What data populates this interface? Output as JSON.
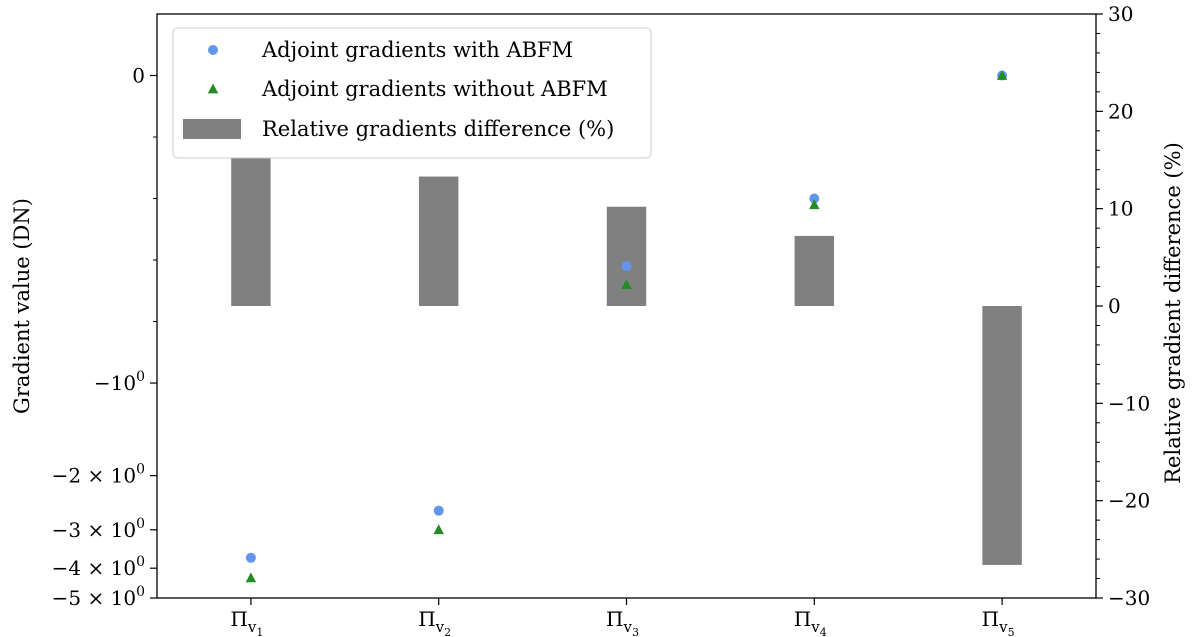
{
  "chart_data": {
    "type": "bar",
    "categories": [
      "Π",
      "Π",
      "Π",
      "Π",
      "Π"
    ],
    "category_subscripts": [
      "v",
      "v",
      "v",
      "v",
      "v"
    ],
    "category_subsub": [
      "1",
      "2",
      "3",
      "4",
      "5"
    ],
    "series": [
      {
        "name": "Adjoint gradients with ABFM",
        "kind": "scatter",
        "marker": "circle",
        "axis": "left",
        "color": "#6495ED",
        "values": [
          -3.7,
          -2.6,
          -0.62,
          -0.4,
          0.0
        ]
      },
      {
        "name": "Adjoint gradients without ABFM",
        "kind": "scatter",
        "marker": "triangle",
        "axis": "left",
        "color": "#228B22",
        "values": [
          -4.3,
          -3.0,
          -0.68,
          -0.42,
          0.0
        ]
      },
      {
        "name": "Relative gradients difference (%)",
        "kind": "bar",
        "axis": "right",
        "color": "#808080",
        "values": [
          15.3,
          13.3,
          10.2,
          7.2,
          -26.6
        ]
      }
    ],
    "y_left": {
      "label": "Gradient value (DN)",
      "scale": "symlog",
      "linthresh": 1,
      "ylim": [
        -5.0,
        0.2
      ],
      "ticks": [
        {
          "value": 0,
          "label": "0"
        },
        {
          "value": -1,
          "label": "−10",
          "sup": "0"
        },
        {
          "value": -2,
          "label": "−2 × 10",
          "sup": "0"
        },
        {
          "value": -3,
          "label": "−3 × 10",
          "sup": "0"
        },
        {
          "value": -4,
          "label": "−4 × 10",
          "sup": "0"
        },
        {
          "value": -5,
          "label": "−5 × 10",
          "sup": "0"
        }
      ]
    },
    "y_right": {
      "label": "Relative gradient difference (%)",
      "scale": "linear",
      "ylim": [
        -30,
        30
      ],
      "ticks": [
        30,
        20,
        10,
        0,
        -10,
        -20,
        -30
      ],
      "tick_labels": [
        "30",
        "20",
        "10",
        "0",
        "−10",
        "−20",
        "−30"
      ]
    },
    "grid": false,
    "legend_position": "top-left"
  }
}
